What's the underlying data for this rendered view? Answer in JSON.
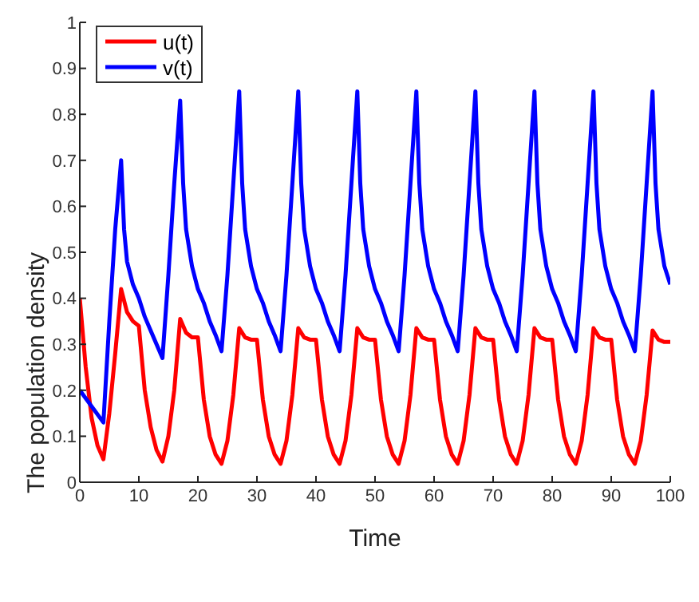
{
  "chart_data": {
    "type": "line",
    "xlabel": "Time",
    "ylabel": "The population density",
    "xlim": [
      0,
      100
    ],
    "ylim": [
      0,
      1
    ],
    "xticks": [
      0,
      10,
      20,
      30,
      40,
      50,
      60,
      70,
      80,
      90,
      100
    ],
    "yticks": [
      0,
      0.1,
      0.2,
      0.3,
      0.4,
      0.5,
      0.6,
      0.7,
      0.8,
      0.9,
      1
    ],
    "grid": false,
    "legend": "top left",
    "marker": "none",
    "line_style": "solid",
    "series": [
      {
        "name": "u(t)",
        "color": "#ff0000",
        "x": [
          0,
          1,
          2,
          3,
          4,
          5,
          6,
          7,
          8,
          9,
          10,
          11,
          12,
          13,
          14,
          15,
          16,
          17,
          18,
          19,
          20,
          21,
          22,
          23,
          24,
          25,
          26,
          27,
          28,
          29,
          30,
          31,
          32,
          33,
          34,
          35,
          36,
          37,
          38,
          39,
          40,
          41,
          42,
          43,
          44,
          45,
          46,
          47,
          48,
          49,
          50,
          51,
          52,
          53,
          54,
          55,
          56,
          57,
          58,
          59,
          60,
          61,
          62,
          63,
          64,
          65,
          66,
          67,
          68,
          69,
          70,
          71,
          72,
          73,
          74,
          75,
          76,
          77,
          78,
          79,
          80,
          81,
          82,
          83,
          84,
          85,
          86,
          87,
          88,
          89,
          90,
          91,
          92,
          93,
          94,
          95,
          96,
          97,
          98,
          99,
          100
        ],
        "values": [
          0.4,
          0.25,
          0.14,
          0.08,
          0.05,
          0.15,
          0.28,
          0.42,
          0.37,
          0.35,
          0.34,
          0.2,
          0.12,
          0.07,
          0.045,
          0.1,
          0.2,
          0.355,
          0.325,
          0.315,
          0.315,
          0.18,
          0.1,
          0.06,
          0.04,
          0.09,
          0.19,
          0.335,
          0.315,
          0.31,
          0.31,
          0.18,
          0.1,
          0.06,
          0.04,
          0.09,
          0.19,
          0.335,
          0.315,
          0.31,
          0.31,
          0.18,
          0.1,
          0.06,
          0.04,
          0.09,
          0.19,
          0.335,
          0.315,
          0.31,
          0.31,
          0.18,
          0.1,
          0.06,
          0.04,
          0.09,
          0.19,
          0.335,
          0.315,
          0.31,
          0.31,
          0.18,
          0.1,
          0.06,
          0.04,
          0.09,
          0.19,
          0.335,
          0.315,
          0.31,
          0.31,
          0.18,
          0.1,
          0.06,
          0.04,
          0.09,
          0.19,
          0.335,
          0.315,
          0.31,
          0.31,
          0.18,
          0.1,
          0.06,
          0.04,
          0.09,
          0.19,
          0.335,
          0.315,
          0.31,
          0.31,
          0.18,
          0.1,
          0.06,
          0.04,
          0.09,
          0.19,
          0.33,
          0.31,
          0.305,
          0.305
        ]
      },
      {
        "name": "v(t)",
        "color": "#0000ff",
        "x": [
          0,
          4,
          5,
          6,
          7,
          7.5,
          8,
          9,
          10,
          11,
          12,
          13,
          14,
          15,
          16,
          17,
          17.5,
          18,
          19,
          20,
          21,
          22,
          23,
          24,
          25,
          26,
          27,
          27.5,
          28,
          29,
          30,
          31,
          32,
          33,
          34,
          35,
          36,
          37,
          37.5,
          38,
          39,
          40,
          41,
          42,
          43,
          44,
          45,
          46,
          47,
          47.5,
          48,
          49,
          50,
          51,
          52,
          53,
          54,
          55,
          56,
          57,
          57.5,
          58,
          59,
          60,
          61,
          62,
          63,
          64,
          65,
          66,
          67,
          67.5,
          68,
          69,
          70,
          71,
          72,
          73,
          74,
          75,
          76,
          77,
          77.5,
          78,
          79,
          80,
          81,
          82,
          83,
          84,
          85,
          86,
          87,
          87.5,
          88,
          89,
          90,
          91,
          92,
          93,
          94,
          95,
          96,
          97,
          97.5,
          98,
          99,
          100
        ],
        "values": [
          0.2,
          0.13,
          0.35,
          0.55,
          0.7,
          0.55,
          0.48,
          0.43,
          0.4,
          0.36,
          0.33,
          0.3,
          0.27,
          0.45,
          0.65,
          0.83,
          0.65,
          0.55,
          0.47,
          0.42,
          0.39,
          0.35,
          0.32,
          0.285,
          0.45,
          0.65,
          0.85,
          0.65,
          0.55,
          0.47,
          0.42,
          0.39,
          0.35,
          0.32,
          0.285,
          0.45,
          0.65,
          0.85,
          0.65,
          0.55,
          0.47,
          0.42,
          0.39,
          0.35,
          0.32,
          0.285,
          0.45,
          0.65,
          0.85,
          0.65,
          0.55,
          0.47,
          0.42,
          0.39,
          0.35,
          0.32,
          0.285,
          0.45,
          0.65,
          0.85,
          0.65,
          0.55,
          0.47,
          0.42,
          0.39,
          0.35,
          0.32,
          0.285,
          0.45,
          0.65,
          0.85,
          0.65,
          0.55,
          0.47,
          0.42,
          0.39,
          0.35,
          0.32,
          0.285,
          0.45,
          0.65,
          0.85,
          0.65,
          0.55,
          0.47,
          0.42,
          0.39,
          0.35,
          0.32,
          0.285,
          0.45,
          0.65,
          0.85,
          0.65,
          0.55,
          0.47,
          0.42,
          0.39,
          0.35,
          0.32,
          0.285,
          0.45,
          0.65,
          0.85,
          0.65,
          0.55,
          0.47,
          0.43
        ]
      }
    ]
  }
}
